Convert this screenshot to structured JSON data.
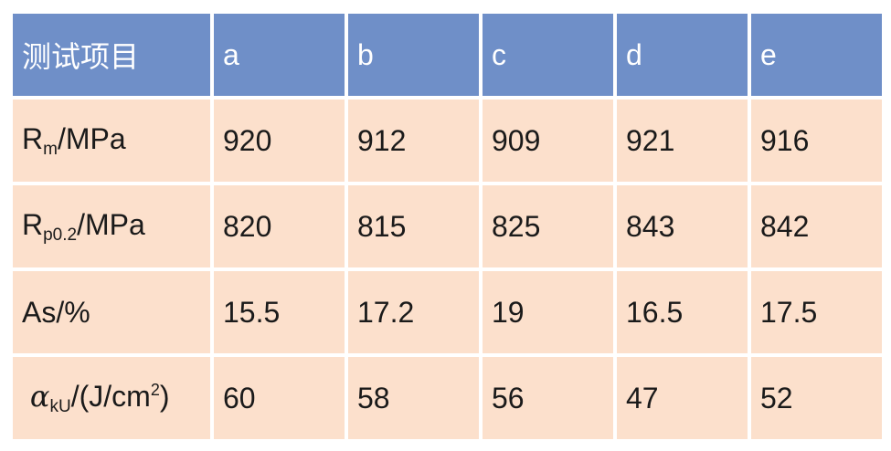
{
  "chart_data": {
    "type": "table",
    "header": [
      "测试项目",
      "a",
      "b",
      "c",
      "d",
      "e"
    ],
    "rows": [
      {
        "label": {
          "pre": "R",
          "sub": "m",
          "post": "/MPa",
          "sup": ""
        },
        "values": [
          "920",
          "912",
          "909",
          "921",
          "916"
        ]
      },
      {
        "label": {
          "pre": "R",
          "sub": "p0.2",
          "post": "/MPa",
          "sup": ""
        },
        "values": [
          "820",
          "815",
          "825",
          "843",
          "842"
        ]
      },
      {
        "label": {
          "pre": "As/%",
          "sub": "",
          "post": "",
          "sup": ""
        },
        "values": [
          "15.5",
          "17.2",
          "19",
          "16.5",
          "17.5"
        ]
      },
      {
        "label": {
          "pre": "α",
          "sub": "kU",
          "post": "/(J/cm",
          "sup": "2",
          "end": ")"
        },
        "values": [
          "60",
          "58",
          "56",
          "47",
          "52"
        ]
      }
    ],
    "colors": {
      "header_bg": "#6f8fc8",
      "cell_bg": "#fce0cc"
    }
  }
}
